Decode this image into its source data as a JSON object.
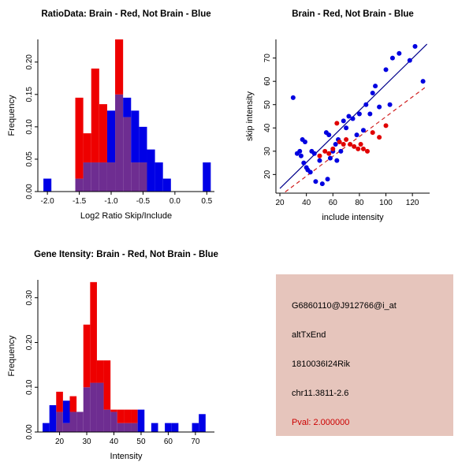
{
  "window": {
    "background": "#ffffff"
  },
  "colors": {
    "red": "#ee0000",
    "blue": "#0000e6",
    "overlap": "#6e2d91",
    "axis": "#000000",
    "navy_line": "#00008b",
    "red_line": "#d02020",
    "scatter_blue": "#0000e0",
    "scatter_red": "#e00000",
    "info_bg": "#e6c5bc",
    "pval": "#cc0000",
    "text": "#000000"
  },
  "chart_data": [
    {
      "id": "ratio-histogram",
      "type": "bar",
      "title": "RatioData: Brain - Red, Not Brain - Blue",
      "xlabel": "Log2 Ratio Skip/Include",
      "ylabel": "Frequency",
      "xlim": [
        -2.15,
        0.62
      ],
      "ylim": [
        0,
        0.235
      ],
      "xticks": [
        -2.0,
        -1.5,
        -1.0,
        -0.5,
        0.0,
        0.5
      ],
      "xtick_labels": [
        "-2.0",
        "-1.5",
        "-1.0",
        "-0.5",
        "0.0",
        "0.5"
      ],
      "yticks": [
        0,
        0.05,
        0.1,
        0.15,
        0.2
      ],
      "ytick_labels": [
        "0.00",
        "0.05",
        "0.10",
        "0.15",
        "0.20"
      ],
      "grid": false,
      "bin_width": 0.125,
      "plot": {
        "l": 48,
        "r": 272,
        "t": 50,
        "b": 243
      },
      "series": [
        {
          "name": "Brain",
          "role": "red",
          "bins": [
            [
              -1.5625,
              0.145
            ],
            [
              -1.4375,
              0.09
            ],
            [
              -1.3125,
              0.19
            ],
            [
              -1.1875,
              0.135
            ],
            [
              -1.0625,
              0.045
            ],
            [
              -0.9375,
              0.235
            ],
            [
              -0.8125,
              0.115
            ],
            [
              -0.6875,
              0.045
            ],
            [
              -0.5625,
              0.045
            ]
          ]
        },
        {
          "name": "Not Brain",
          "role": "blue",
          "bins": [
            [
              -2.0625,
              0.02
            ],
            [
              -1.5625,
              0.02
            ],
            [
              -1.4375,
              0.045
            ],
            [
              -1.3125,
              0.045
            ],
            [
              -1.1875,
              0.045
            ],
            [
              -1.0625,
              0.125
            ],
            [
              -0.9375,
              0.15
            ],
            [
              -0.8125,
              0.145
            ],
            [
              -0.6875,
              0.125
            ],
            [
              -0.5625,
              0.1
            ],
            [
              -0.4375,
              0.065
            ],
            [
              -0.3125,
              0.045
            ],
            [
              -0.1875,
              0.02
            ],
            [
              0.4375,
              0.045
            ]
          ]
        }
      ]
    },
    {
      "id": "intensity-scatter",
      "type": "scatter",
      "title": "Brain - Red, Not Brain - Blue",
      "xlabel": "include intensity",
      "ylabel": "skip intensity",
      "xlim": [
        17,
        133
      ],
      "ylim": [
        12,
        78
      ],
      "xticks": [
        20,
        40,
        60,
        80,
        100,
        120
      ],
      "xtick_labels": [
        "20",
        "40",
        "60",
        "80",
        "100",
        "120"
      ],
      "yticks": [
        20,
        30,
        40,
        50,
        60,
        70
      ],
      "ytick_labels": [
        "20",
        "30",
        "40",
        "50",
        "60",
        "70"
      ],
      "grid": false,
      "plot": {
        "l": 50,
        "r": 245,
        "t": 50,
        "b": 245
      },
      "lines": [
        {
          "name": "not-brain-fit",
          "color_key": "navy_line",
          "dash": false,
          "from": [
            20,
            14
          ],
          "to": [
            131,
            76
          ]
        },
        {
          "name": "brain-fit",
          "color_key": "red_line",
          "dash": true,
          "from": [
            24,
            12.5
          ],
          "to": [
            131,
            58
          ]
        }
      ],
      "points": [
        {
          "name": "not-brain",
          "color_key": "scatter_blue",
          "r": 3,
          "xy": [
            [
              30,
              53
            ],
            [
              33,
              29
            ],
            [
              35,
              30
            ],
            [
              36,
              28
            ],
            [
              37,
              35
            ],
            [
              38,
              25
            ],
            [
              39,
              34
            ],
            [
              40,
              23
            ],
            [
              41,
              22
            ],
            [
              43,
              21
            ],
            [
              44,
              30
            ],
            [
              46,
              29
            ],
            [
              47,
              17
            ],
            [
              50,
              26
            ],
            [
              52,
              16
            ],
            [
              55,
              38
            ],
            [
              56,
              18
            ],
            [
              57,
              37
            ],
            [
              58,
              27
            ],
            [
              60,
              30
            ],
            [
              62,
              33
            ],
            [
              63,
              26
            ],
            [
              64,
              35
            ],
            [
              66,
              30
            ],
            [
              68,
              43
            ],
            [
              70,
              40
            ],
            [
              72,
              45
            ],
            [
              75,
              44
            ],
            [
              78,
              37
            ],
            [
              80,
              46
            ],
            [
              83,
              39
            ],
            [
              85,
              50
            ],
            [
              88,
              46
            ],
            [
              90,
              55
            ],
            [
              92,
              58
            ],
            [
              95,
              49
            ],
            [
              100,
              65
            ],
            [
              103,
              50
            ],
            [
              105,
              70
            ],
            [
              110,
              72
            ],
            [
              118,
              69
            ],
            [
              122,
              75
            ],
            [
              128,
              60
            ]
          ]
        },
        {
          "name": "brain",
          "color_key": "scatter_red",
          "r": 3,
          "xy": [
            [
              50,
              28
            ],
            [
              54,
              30
            ],
            [
              57,
              29
            ],
            [
              60,
              31
            ],
            [
              63,
              42
            ],
            [
              65,
              34
            ],
            [
              68,
              33
            ],
            [
              70,
              35
            ],
            [
              73,
              33
            ],
            [
              76,
              32
            ],
            [
              79,
              31
            ],
            [
              81,
              33
            ],
            [
              83,
              31
            ],
            [
              86,
              30
            ],
            [
              90,
              38
            ],
            [
              95,
              36
            ],
            [
              100,
              41
            ]
          ]
        }
      ]
    },
    {
      "id": "gene-intensity-histogram",
      "type": "bar",
      "title": "Gene Itensity: Brain - Red, Not Brain - Blue",
      "xlabel": "Intensity",
      "ylabel": "Frequency",
      "xlim": [
        12,
        77
      ],
      "ylim": [
        0,
        0.34
      ],
      "xticks": [
        20,
        30,
        40,
        50,
        60,
        70
      ],
      "xtick_labels": [
        "20",
        "30",
        "40",
        "50",
        "60",
        "70"
      ],
      "yticks": [
        0,
        0.1,
        0.2,
        0.3
      ],
      "ytick_labels": [
        "0.00",
        "0.10",
        "0.20",
        "0.30"
      ],
      "grid": false,
      "bin_width": 2.5,
      "plot": {
        "l": 48,
        "r": 272,
        "t": 50,
        "b": 243
      },
      "series": [
        {
          "name": "Brain",
          "role": "red",
          "bins": [
            [
              18.75,
              0.09
            ],
            [
              21.25,
              0.02
            ],
            [
              23.75,
              0.08
            ],
            [
              26.25,
              0.045
            ],
            [
              28.75,
              0.24
            ],
            [
              31.25,
              0.335
            ],
            [
              33.75,
              0.16
            ],
            [
              36.25,
              0.16
            ],
            [
              38.75,
              0.05
            ],
            [
              41.25,
              0.05
            ],
            [
              43.75,
              0.05
            ],
            [
              46.25,
              0.05
            ]
          ]
        },
        {
          "name": "Not Brain",
          "role": "blue",
          "bins": [
            [
              13.75,
              0.02
            ],
            [
              16.25,
              0.06
            ],
            [
              18.75,
              0.045
            ],
            [
              21.25,
              0.07
            ],
            [
              23.75,
              0.045
            ],
            [
              26.25,
              0.045
            ],
            [
              28.75,
              0.1
            ],
            [
              31.25,
              0.11
            ],
            [
              33.75,
              0.11
            ],
            [
              36.25,
              0.05
            ],
            [
              38.75,
              0.045
            ],
            [
              41.25,
              0.02
            ],
            [
              43.75,
              0.02
            ],
            [
              46.25,
              0.02
            ],
            [
              48.75,
              0.05
            ],
            [
              53.75,
              0.02
            ],
            [
              58.75,
              0.02
            ],
            [
              61.25,
              0.02
            ],
            [
              68.75,
              0.02
            ],
            [
              71.25,
              0.04
            ]
          ]
        }
      ]
    }
  ],
  "info_box": {
    "probe": "G6860110@J912766@i_at",
    "event": "altTxEnd",
    "gene": "1810036I24Rik",
    "locus": "chr11.3811-2.6",
    "pval": "Pval: 2.000000"
  }
}
